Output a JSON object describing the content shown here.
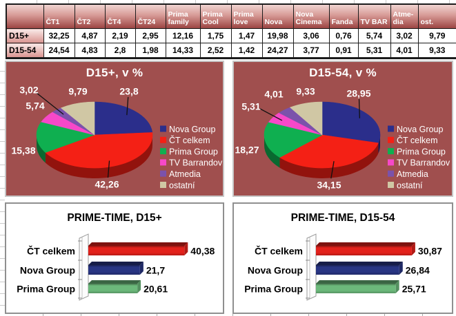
{
  "table": {
    "columns": [
      "",
      "ČT1",
      "ČT2",
      "ČT4",
      "ČT24",
      "Prima\nfamily",
      "Prima\nCool",
      "Prima\nlove",
      "Nova",
      "Nova\nCinema",
      "Fanda",
      "TV BAR",
      "Atme-\ndia",
      "ost."
    ],
    "rows": [
      {
        "label": "D15+",
        "values": [
          "32,25",
          "4,87",
          "2,19",
          "2,95",
          "12,16",
          "1,75",
          "1,47",
          "19,98",
          "3,06",
          "0,76",
          "5,74",
          "3,02",
          "9,79"
        ]
      },
      {
        "label": "D15-54",
        "values": [
          "24,54",
          "4,83",
          "2,8",
          "1,98",
          "14,33",
          "2,52",
          "1,42",
          "24,27",
          "3,77",
          "0,91",
          "5,31",
          "4,01",
          "9,33"
        ]
      }
    ]
  },
  "chart_data": [
    {
      "type": "pie",
      "title": "D15+, v %",
      "labels": [
        "Nova Group",
        "ČT celkem",
        "Prima Group",
        "TV Barrandov",
        "Atmedia",
        "ostatní"
      ],
      "values": [
        23.8,
        42.26,
        15.38,
        5.74,
        3.02,
        9.79
      ],
      "value_labels": [
        "23,8",
        "42,26",
        "15,38",
        "5,74",
        "3,02",
        "9,79"
      ],
      "colors": [
        "#2b2e8b",
        "#f42015",
        "#0faf50",
        "#f748c9",
        "#7b52ab",
        "#d0c7a4"
      ],
      "background": "#a04f4e",
      "legend_position": "right",
      "effect": "3d"
    },
    {
      "type": "pie",
      "title": "D15-54, v %",
      "labels": [
        "Nova Group",
        "ČT celkem",
        "Prima Group",
        "TV Barrandov",
        "Atmedia",
        "ostatní"
      ],
      "values": [
        28.95,
        34.15,
        18.27,
        5.31,
        4.01,
        9.33
      ],
      "value_labels": [
        "28,95",
        "34,15",
        "18,27",
        "5,31",
        "4,01",
        "9,33"
      ],
      "colors": [
        "#2b2e8b",
        "#f42015",
        "#0faf50",
        "#f748c9",
        "#7b52ab",
        "#d0c7a4"
      ],
      "background": "#a04f4e",
      "legend_position": "right",
      "effect": "3d"
    },
    {
      "type": "bar",
      "title": "PRIME-TIME, D15+",
      "categories": [
        "ČT celkem",
        "Nova Group",
        "Prima Group"
      ],
      "values": [
        40.38,
        21.7,
        20.61
      ],
      "value_labels": [
        "40,38",
        "21,7",
        "20,61"
      ],
      "colors": [
        "#e3211b",
        "#283583",
        "#6cb97b"
      ],
      "orientation": "horizontal",
      "xlim": [
        0,
        45
      ],
      "effect": "3d"
    },
    {
      "type": "bar",
      "title": "PRIME-TIME, D15-54",
      "categories": [
        "ČT celkem",
        "Nova Group",
        "Prima Group"
      ],
      "values": [
        30.87,
        26.84,
        25.71
      ],
      "value_labels": [
        "30,87",
        "26,84",
        "25,71"
      ],
      "colors": [
        "#e3211b",
        "#283583",
        "#6cb97b"
      ],
      "orientation": "horizontal",
      "xlim": [
        0,
        35
      ],
      "effect": "3d"
    }
  ]
}
